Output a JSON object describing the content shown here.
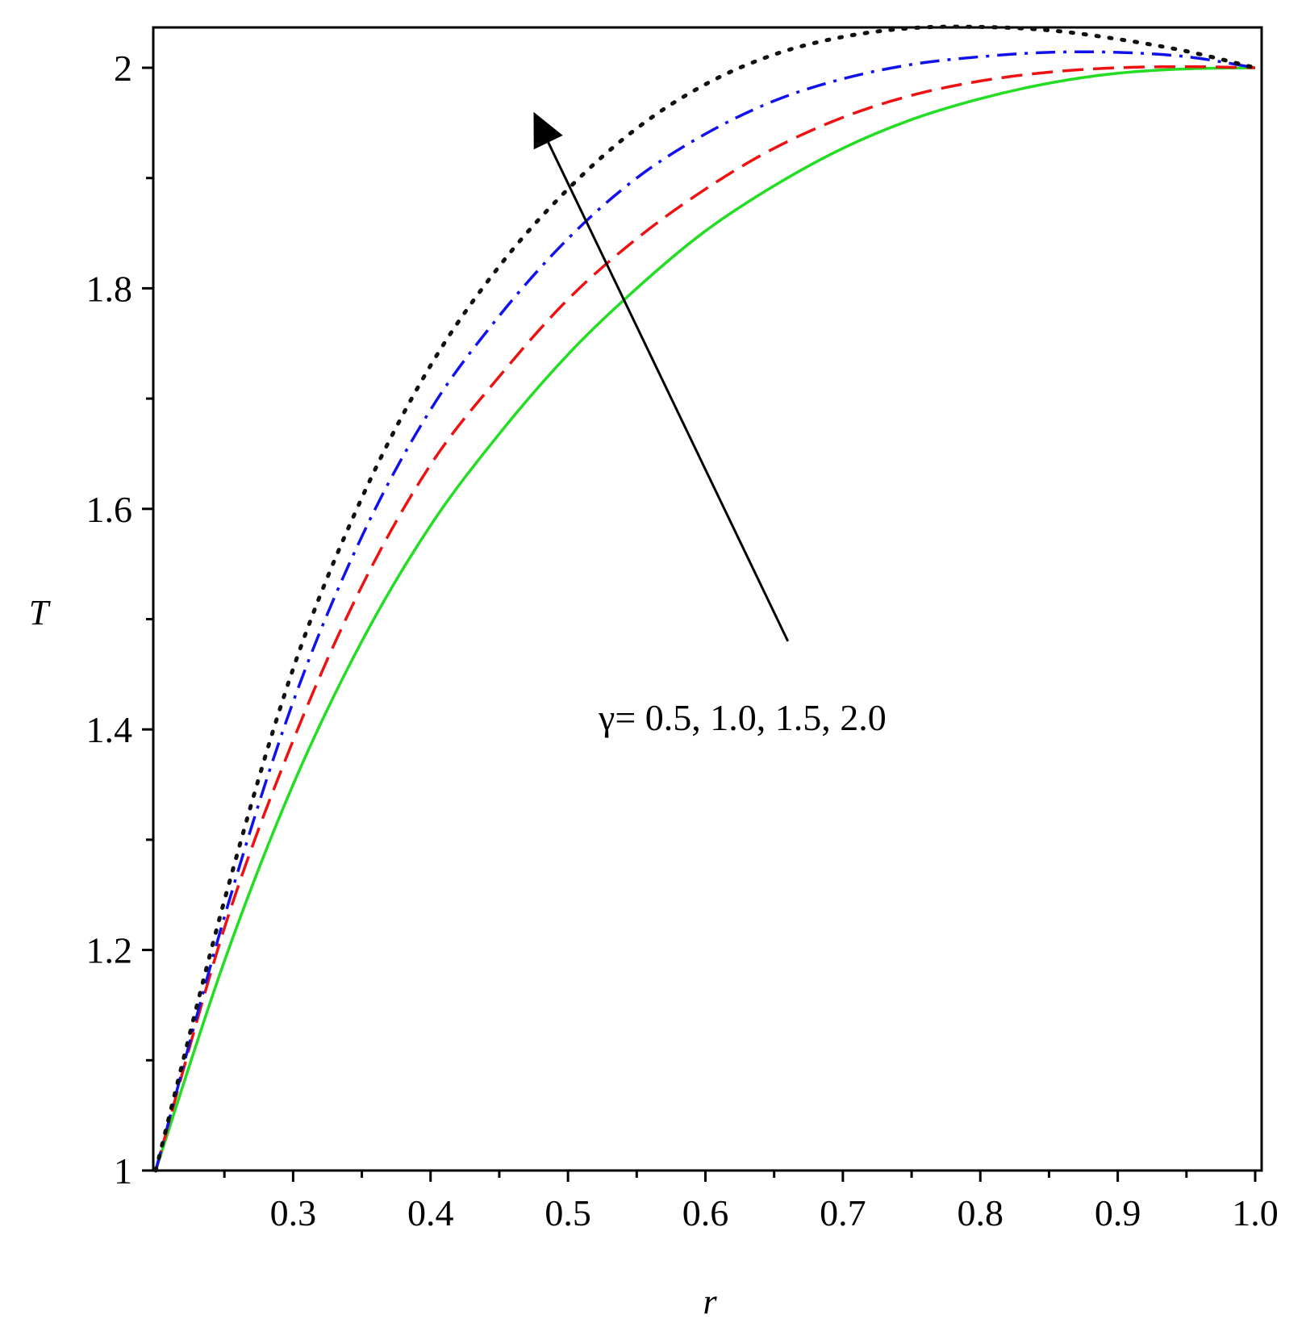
{
  "chart_data": {
    "type": "line",
    "xlabel": "r",
    "ylabel": "T",
    "xlim": [
      0.2,
      1.0
    ],
    "ylim": [
      1.0,
      2.04
    ],
    "xticks": [
      {
        "value": 0.3,
        "label": "0.3"
      },
      {
        "value": 0.4,
        "label": "0.4"
      },
      {
        "value": 0.5,
        "label": "0.5"
      },
      {
        "value": 0.6,
        "label": "0.6"
      },
      {
        "value": 0.7,
        "label": "0.7"
      },
      {
        "value": 0.8,
        "label": "0.8"
      },
      {
        "value": 0.9,
        "label": "0.9"
      },
      {
        "value": 1.0,
        "label": "1.0"
      }
    ],
    "yticks": [
      {
        "value": 1.0,
        "label": "1"
      },
      {
        "value": 1.2,
        "label": "1.2"
      },
      {
        "value": 1.4,
        "label": "1.4"
      },
      {
        "value": 1.6,
        "label": "1.6"
      },
      {
        "value": 1.8,
        "label": "1.8"
      },
      {
        "value": 2.0,
        "label": "2"
      }
    ],
    "x": [
      0.2,
      0.25,
      0.3,
      0.35,
      0.4,
      0.45,
      0.5,
      0.55,
      0.6,
      0.65,
      0.7,
      0.75,
      0.8,
      0.85,
      0.9,
      0.95,
      1.0
    ],
    "series": [
      {
        "style": "solid",
        "color": "#22dd22",
        "values": [
          1.0,
          1.19,
          1.35,
          1.48,
          1.585,
          1.668,
          1.74,
          1.8,
          1.852,
          1.893,
          1.927,
          1.953,
          1.972,
          1.986,
          1.995,
          1.999,
          2.0
        ]
      },
      {
        "style": "dashed",
        "color": "#ee1111",
        "values": [
          1.0,
          1.22,
          1.39,
          1.53,
          1.64,
          1.72,
          1.79,
          1.845,
          1.89,
          1.927,
          1.955,
          1.975,
          1.988,
          1.996,
          2.0,
          2.001,
          2.0
        ]
      },
      {
        "style": "dashdot",
        "color": "#1111ee",
        "values": [
          1.0,
          1.23,
          1.425,
          1.575,
          1.69,
          1.775,
          1.845,
          1.9,
          1.94,
          1.97,
          1.99,
          2.003,
          2.01,
          2.014,
          2.014,
          2.01,
          2.0
        ]
      },
      {
        "style": "dotted",
        "color": "#111111",
        "values": [
          1.0,
          1.245,
          1.455,
          1.61,
          1.73,
          1.82,
          1.89,
          1.945,
          1.985,
          2.012,
          2.028,
          2.036,
          2.037,
          2.034,
          2.026,
          2.015,
          2.0
        ]
      }
    ],
    "annotation": {
      "text": "γ= 0.5, 1.0, 1.5, 2.0",
      "arrow_from": [
        0.66,
        1.48
      ],
      "arrow_to": [
        0.475,
        1.96
      ]
    }
  }
}
